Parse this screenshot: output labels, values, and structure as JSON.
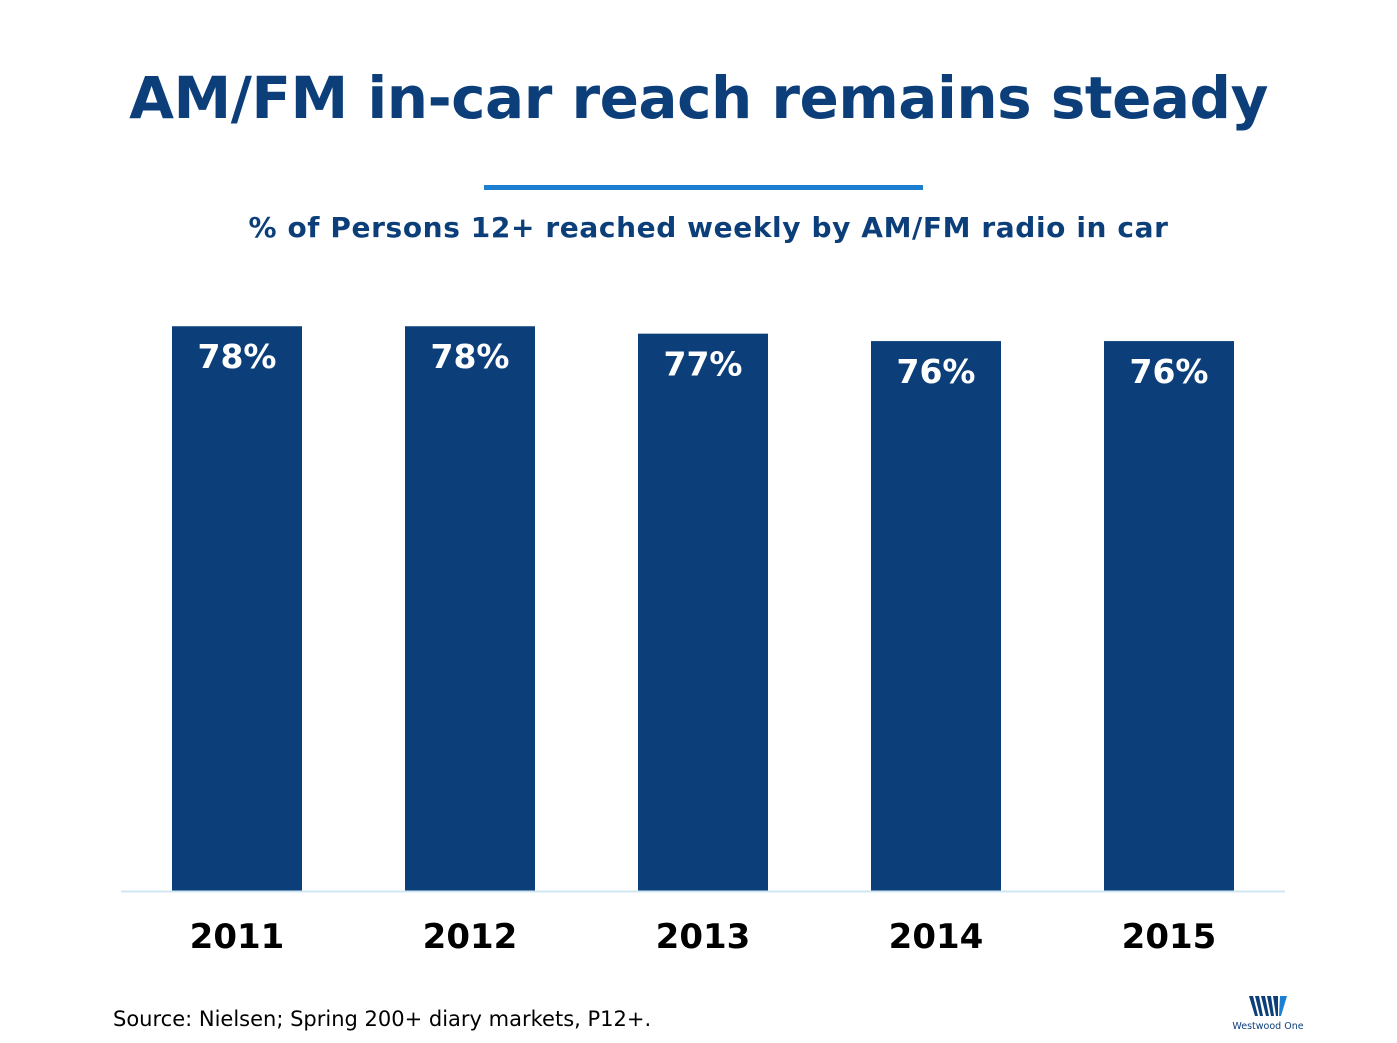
{
  "title": "AM/FM in-car reach remains steady",
  "subtitle": "% of Persons 12+ reached weekly by AM/FM radio in car",
  "source": "Source: Nielsen; Spring 200+ diary markets, P12+.",
  "logo": {
    "icon": "westwood-one-logo-icon",
    "text": "Westwood One"
  },
  "colors": {
    "bar": "#0c3f7a",
    "accent_rule": "#1c7fd1",
    "axis_line": "#cfe6f3"
  },
  "chart_data": {
    "type": "bar",
    "title": "AM/FM in-car reach remains steady",
    "subtitle": "% of Persons 12+ reached weekly by AM/FM radio in car",
    "xlabel": "",
    "ylabel": "",
    "categories": [
      "2011",
      "2012",
      "2013",
      "2014",
      "2015"
    ],
    "values": [
      78,
      78,
      77,
      76,
      76
    ],
    "value_labels": [
      "78%",
      "78%",
      "77%",
      "76%",
      "76%"
    ],
    "grid": false,
    "legend": "none"
  }
}
